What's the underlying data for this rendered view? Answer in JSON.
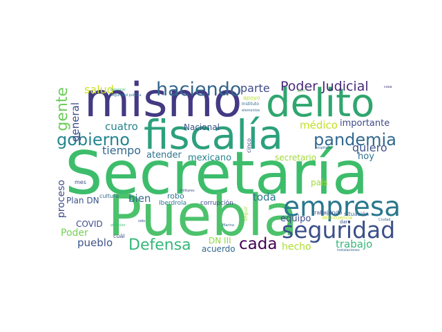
{
  "wordcloud": {
    "words": [
      {
        "text": "Secretaría",
        "color": "#3dbd6b"
      },
      {
        "text": "Puebla",
        "color": "#4cc26c"
      },
      {
        "text": "mismo",
        "color": "#433a83"
      },
      {
        "text": "fiscalía",
        "color": "#2ca07c"
      },
      {
        "text": "delito",
        "color": "#30a66f"
      },
      {
        "text": "empresa",
        "color": "#2a788e"
      },
      {
        "text": "seguridad",
        "color": "#3b4f8a"
      },
      {
        "text": "haciendo",
        "color": "#35668d"
      },
      {
        "text": "gobierno",
        "color": "#25858e"
      },
      {
        "text": "pandemia",
        "color": "#31688e"
      },
      {
        "text": "Poder Judicial",
        "color": "#482878"
      },
      {
        "text": "gente",
        "color": "#6ccd5a"
      },
      {
        "text": "Defensa",
        "color": "#35b779"
      },
      {
        "text": "cada",
        "color": "#440154"
      },
      {
        "text": "general",
        "color": "#3e4a89"
      },
      {
        "text": "salud",
        "color": "#d0e11c"
      },
      {
        "text": "parte",
        "color": "#3e4a89"
      },
      {
        "text": "cuatro",
        "color": "#26828e"
      },
      {
        "text": "Nacional",
        "color": "#3b528b"
      },
      {
        "text": "médico",
        "color": "#c2df23"
      },
      {
        "text": "importante",
        "color": "#3e4a89"
      },
      {
        "text": "quiero",
        "color": "#3b528b"
      },
      {
        "text": "tiempo",
        "color": "#31688e"
      },
      {
        "text": "atender",
        "color": "#2c728e"
      },
      {
        "text": "mexicano",
        "color": "#26828e"
      },
      {
        "text": "secretario",
        "color": "#a0da39"
      },
      {
        "text": "hoy",
        "color": "#2c728e"
      },
      {
        "text": "proceso",
        "color": "#3e4a89"
      },
      {
        "text": "Plan DN",
        "color": "#3b528b"
      },
      {
        "text": "bien",
        "color": "#31688e"
      },
      {
        "text": "toda",
        "color": "#2a788e"
      },
      {
        "text": "país",
        "color": "#a0da39"
      },
      {
        "text": "equipo",
        "color": "#3e4a89"
      },
      {
        "text": "COVID",
        "color": "#3e4a89"
      },
      {
        "text": "Poder",
        "color": "#75d054"
      },
      {
        "text": "pueblo",
        "color": "#3b528b"
      },
      {
        "text": "hecho",
        "color": "#addc30"
      },
      {
        "text": "trabajo",
        "color": "#35b779"
      },
      {
        "text": "DN III",
        "color": "#8fd744"
      },
      {
        "text": "acuerdo",
        "color": "#31688e"
      },
      {
        "text": "robo",
        "color": "#2c728e"
      },
      {
        "text": "corrupción",
        "color": "#3e4a89"
      },
      {
        "text": "Iberdrola",
        "color": "#2a788e"
      },
      {
        "text": "cultura",
        "color": "#31688e"
      },
      {
        "text": "mes",
        "color": "#3e4a89"
      },
      {
        "text": "cinco",
        "color": "#3e4a89"
      },
      {
        "text": "apoyo",
        "color": "#b5de2b"
      },
      {
        "text": "Instituto",
        "color": "#31688e"
      },
      {
        "text": "elementos",
        "color": "#31688e"
      },
      {
        "text": "abril",
        "color": "#6ccd5a"
      },
      {
        "text": "cosa",
        "color": "#443983"
      },
      {
        "text": "hospitales",
        "color": "#31688e"
      },
      {
        "text": "militares",
        "color": "#3e4a89"
      },
      {
        "text": "trabajando",
        "color": "#3b528b"
      },
      {
        "text": "situación",
        "color": "#31688e"
      },
      {
        "text": "delincuencia",
        "color": "#c2df23"
      },
      {
        "text": "dar",
        "color": "#3b528b"
      },
      {
        "text": "Ciudad",
        "color": "#31688e"
      },
      {
        "text": "seguir",
        "color": "#a8db34"
      },
      {
        "text": "Marina",
        "color": "#31688e"
      },
      {
        "text": "cuál",
        "color": "#3e4a89"
      },
      {
        "text": "sido",
        "color": "#3e4a89"
      },
      {
        "text": "atención",
        "color": "#3dbc74"
      },
      {
        "text": "personal",
        "color": "#3dbc74"
      },
      {
        "text": "seguridad pública",
        "color": "#2a788e"
      },
      {
        "text": "instalaciones",
        "color": "#31688e"
      }
    ]
  }
}
